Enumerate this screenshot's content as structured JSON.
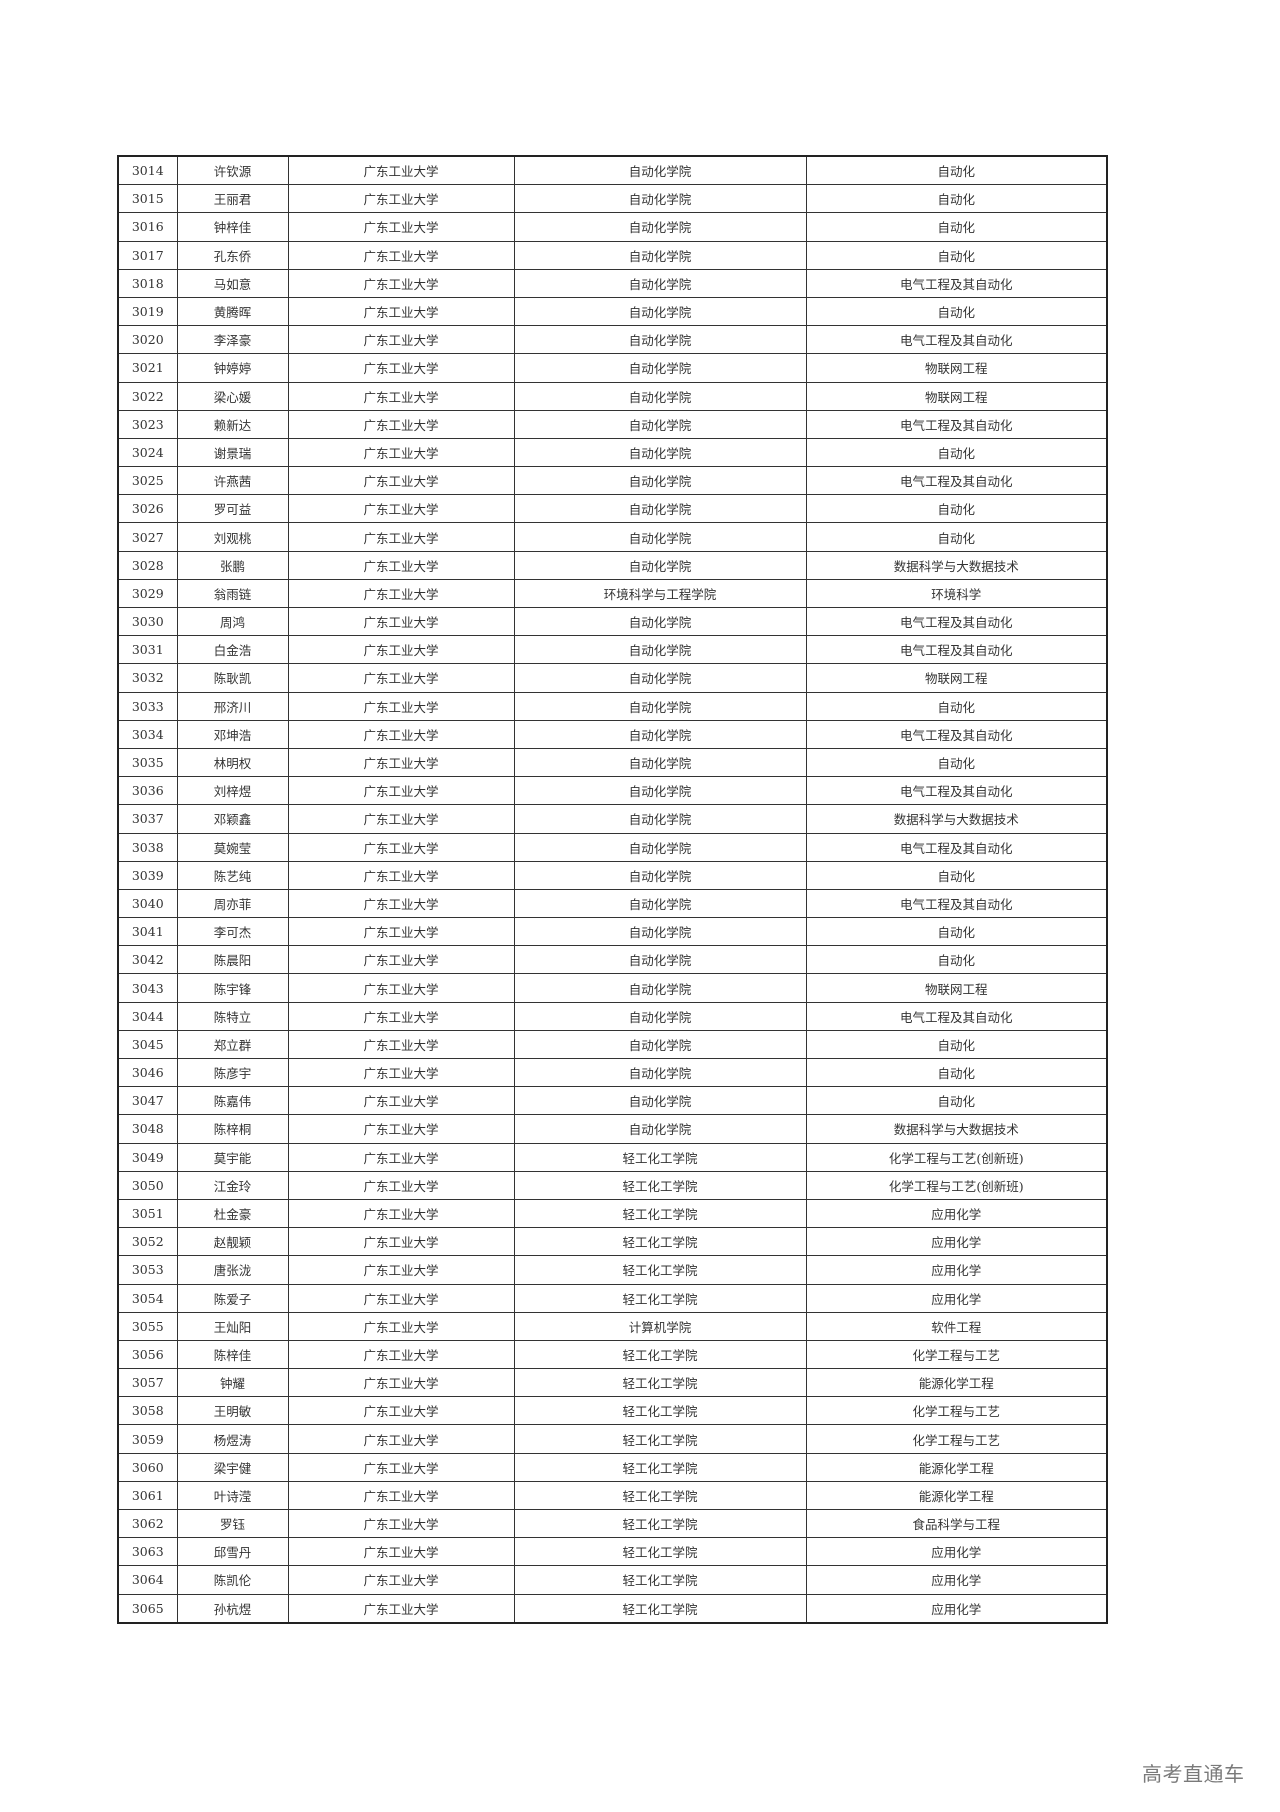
{
  "watermark": "高考直通车",
  "table": {
    "rows": [
      [
        "3014",
        "许钦源",
        "广东工业大学",
        "自动化学院",
        "自动化"
      ],
      [
        "3015",
        "王丽君",
        "广东工业大学",
        "自动化学院",
        "自动化"
      ],
      [
        "3016",
        "钟梓佳",
        "广东工业大学",
        "自动化学院",
        "自动化"
      ],
      [
        "3017",
        "孔东侨",
        "广东工业大学",
        "自动化学院",
        "自动化"
      ],
      [
        "3018",
        "马如意",
        "广东工业大学",
        "自动化学院",
        "电气工程及其自动化"
      ],
      [
        "3019",
        "黄腾晖",
        "广东工业大学",
        "自动化学院",
        "自动化"
      ],
      [
        "3020",
        "李泽豪",
        "广东工业大学",
        "自动化学院",
        "电气工程及其自动化"
      ],
      [
        "3021",
        "钟婷婷",
        "广东工业大学",
        "自动化学院",
        "物联网工程"
      ],
      [
        "3022",
        "梁心媛",
        "广东工业大学",
        "自动化学院",
        "物联网工程"
      ],
      [
        "3023",
        "赖新达",
        "广东工业大学",
        "自动化学院",
        "电气工程及其自动化"
      ],
      [
        "3024",
        "谢景瑞",
        "广东工业大学",
        "自动化学院",
        "自动化"
      ],
      [
        "3025",
        "许燕茜",
        "广东工业大学",
        "自动化学院",
        "电气工程及其自动化"
      ],
      [
        "3026",
        "罗可益",
        "广东工业大学",
        "自动化学院",
        "自动化"
      ],
      [
        "3027",
        "刘观桃",
        "广东工业大学",
        "自动化学院",
        "自动化"
      ],
      [
        "3028",
        "张鹏",
        "广东工业大学",
        "自动化学院",
        "数据科学与大数据技术"
      ],
      [
        "3029",
        "翁雨链",
        "广东工业大学",
        "环境科学与工程学院",
        "环境科学"
      ],
      [
        "3030",
        "周鸿",
        "广东工业大学",
        "自动化学院",
        "电气工程及其自动化"
      ],
      [
        "3031",
        "白金浩",
        "广东工业大学",
        "自动化学院",
        "电气工程及其自动化"
      ],
      [
        "3032",
        "陈耿凯",
        "广东工业大学",
        "自动化学院",
        "物联网工程"
      ],
      [
        "3033",
        "邢济川",
        "广东工业大学",
        "自动化学院",
        "自动化"
      ],
      [
        "3034",
        "邓坤浩",
        "广东工业大学",
        "自动化学院",
        "电气工程及其自动化"
      ],
      [
        "3035",
        "林明权",
        "广东工业大学",
        "自动化学院",
        "自动化"
      ],
      [
        "3036",
        "刘梓煜",
        "广东工业大学",
        "自动化学院",
        "电气工程及其自动化"
      ],
      [
        "3037",
        "邓颖鑫",
        "广东工业大学",
        "自动化学院",
        "数据科学与大数据技术"
      ],
      [
        "3038",
        "莫婉莹",
        "广东工业大学",
        "自动化学院",
        "电气工程及其自动化"
      ],
      [
        "3039",
        "陈艺纯",
        "广东工业大学",
        "自动化学院",
        "自动化"
      ],
      [
        "3040",
        "周亦菲",
        "广东工业大学",
        "自动化学院",
        "电气工程及其自动化"
      ],
      [
        "3041",
        "李可杰",
        "广东工业大学",
        "自动化学院",
        "自动化"
      ],
      [
        "3042",
        "陈晨阳",
        "广东工业大学",
        "自动化学院",
        "自动化"
      ],
      [
        "3043",
        "陈宇锋",
        "广东工业大学",
        "自动化学院",
        "物联网工程"
      ],
      [
        "3044",
        "陈特立",
        "广东工业大学",
        "自动化学院",
        "电气工程及其自动化"
      ],
      [
        "3045",
        "郑立群",
        "广东工业大学",
        "自动化学院",
        "自动化"
      ],
      [
        "3046",
        "陈彦宇",
        "广东工业大学",
        "自动化学院",
        "自动化"
      ],
      [
        "3047",
        "陈嘉伟",
        "广东工业大学",
        "自动化学院",
        "自动化"
      ],
      [
        "3048",
        "陈梓桐",
        "广东工业大学",
        "自动化学院",
        "数据科学与大数据技术"
      ],
      [
        "3049",
        "莫宇能",
        "广东工业大学",
        "轻工化工学院",
        "化学工程与工艺(创新班)"
      ],
      [
        "3050",
        "江金玲",
        "广东工业大学",
        "轻工化工学院",
        "化学工程与工艺(创新班)"
      ],
      [
        "3051",
        "杜金豪",
        "广东工业大学",
        "轻工化工学院",
        "应用化学"
      ],
      [
        "3052",
        "赵靓颖",
        "广东工业大学",
        "轻工化工学院",
        "应用化学"
      ],
      [
        "3053",
        "唐张泷",
        "广东工业大学",
        "轻工化工学院",
        "应用化学"
      ],
      [
        "3054",
        "陈爱子",
        "广东工业大学",
        "轻工化工学院",
        "应用化学"
      ],
      [
        "3055",
        "王灿阳",
        "广东工业大学",
        "计算机学院",
        "软件工程"
      ],
      [
        "3056",
        "陈梓佳",
        "广东工业大学",
        "轻工化工学院",
        "化学工程与工艺"
      ],
      [
        "3057",
        "钟耀",
        "广东工业大学",
        "轻工化工学院",
        "能源化学工程"
      ],
      [
        "3058",
        "王明敏",
        "广东工业大学",
        "轻工化工学院",
        "化学工程与工艺"
      ],
      [
        "3059",
        "杨煜涛",
        "广东工业大学",
        "轻工化工学院",
        "化学工程与工艺"
      ],
      [
        "3060",
        "梁宇健",
        "广东工业大学",
        "轻工化工学院",
        "能源化学工程"
      ],
      [
        "3061",
        "叶诗滢",
        "广东工业大学",
        "轻工化工学院",
        "能源化学工程"
      ],
      [
        "3062",
        "罗钰",
        "广东工业大学",
        "轻工化工学院",
        "食品科学与工程"
      ],
      [
        "3063",
        "邱雪丹",
        "广东工业大学",
        "轻工化工学院",
        "应用化学"
      ],
      [
        "3064",
        "陈凯伦",
        "广东工业大学",
        "轻工化工学院",
        "应用化学"
      ],
      [
        "3065",
        "孙杭煜",
        "广东工业大学",
        "轻工化工学院",
        "应用化学"
      ]
    ]
  }
}
